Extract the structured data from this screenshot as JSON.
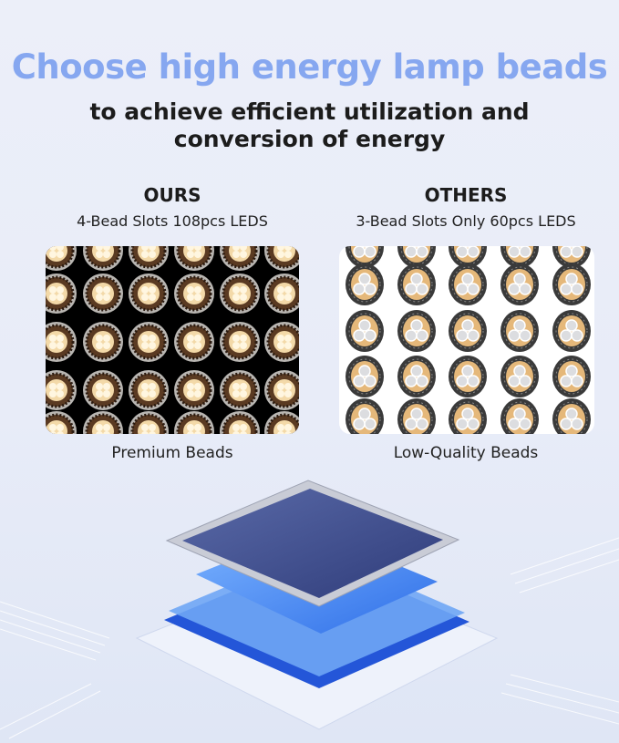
{
  "headline": "Choose high energy lamp beads",
  "subheadline_line1": "to achieve efficient utilization and",
  "subheadline_line2": "conversion of energy",
  "ours": {
    "heading": "OURS",
    "detail": "4-Bead Slots 108pcs LEDS",
    "caption": "Premium Beads"
  },
  "others": {
    "heading": "OTHERS",
    "detail": "3-Bead Slots Only 60pcs LEDS",
    "caption": "Low-Quality Beads"
  },
  "colors": {
    "headline": "#86a7f0",
    "chip_blue": "#3b82f0",
    "chip_lid": "#3f4f8f"
  }
}
